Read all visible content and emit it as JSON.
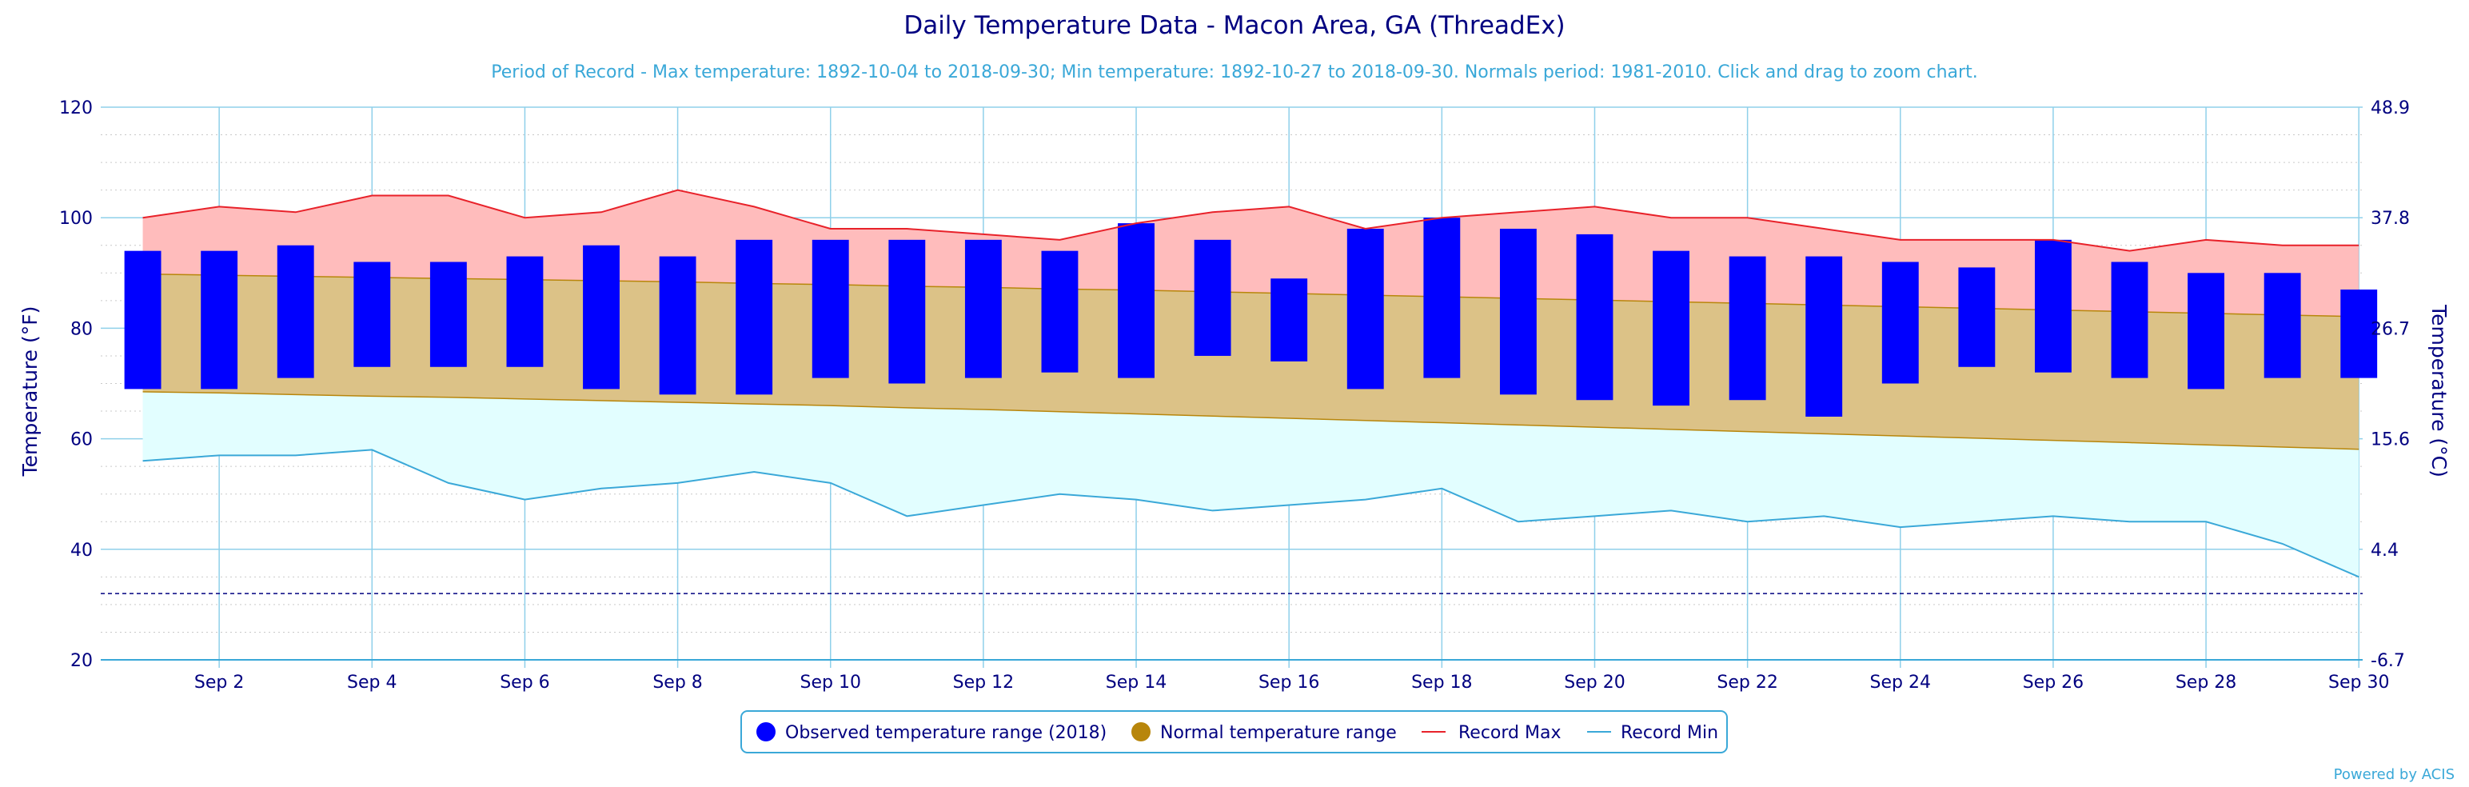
{
  "chart_data": {
    "type": "bar",
    "title": "Daily Temperature Data - Macon Area, GA (ThreadEx)",
    "subtitle": "Period of Record - Max temperature: 1892-10-04 to 2018-09-30; Min temperature: 1892-10-27 to 2018-09-30. Normals period: 1981-2010. Click and drag to zoom chart.",
    "ylabel_left": "Temperature (°F)",
    "ylabel_right": "Temperature (°C)",
    "ylim": [
      20,
      120
    ],
    "y_ticks_left": [
      "20",
      "40",
      "60",
      "80",
      "100",
      "120"
    ],
    "y_ticks_right": [
      "-6.7",
      "4.4",
      "15.6",
      "26.7",
      "37.8",
      "48.9"
    ],
    "x_tick_labels": [
      "Sep 2",
      "Sep 4",
      "Sep 6",
      "Sep 8",
      "Sep 10",
      "Sep 12",
      "Sep 14",
      "Sep 16",
      "Sep 18",
      "Sep 20",
      "Sep 22",
      "Sep 24",
      "Sep 26",
      "Sep 28",
      "Sep 30"
    ],
    "x_tick_days": [
      2,
      4,
      6,
      8,
      10,
      12,
      14,
      16,
      18,
      20,
      22,
      24,
      26,
      28,
      30
    ],
    "days": [
      1,
      2,
      3,
      4,
      5,
      6,
      7,
      8,
      9,
      10,
      11,
      12,
      13,
      14,
      15,
      16,
      17,
      18,
      19,
      20,
      21,
      22,
      23,
      24,
      25,
      26,
      27,
      28,
      29,
      30
    ],
    "freeze_line": 32,
    "series": [
      {
        "name": "Observed temperature range (2018)",
        "color": "#0000ff",
        "high": [
          94,
          94,
          95,
          92,
          92,
          93,
          95,
          93,
          96,
          96,
          96,
          96,
          94,
          99,
          96,
          89,
          98,
          100,
          98,
          97,
          94,
          93,
          93,
          92,
          91,
          96,
          92,
          90,
          90,
          87
        ],
        "low": [
          69,
          69,
          71,
          73,
          73,
          73,
          69,
          68,
          68,
          71,
          70,
          71,
          72,
          71,
          75,
          74,
          69,
          71,
          68,
          67,
          66,
          67,
          64,
          70,
          73,
          72,
          71,
          69,
          71,
          71
        ]
      },
      {
        "name": "Normal temperature range",
        "color": "#b8860b",
        "high": [
          89.8,
          89.6,
          89.4,
          89.2,
          89.0,
          88.8,
          88.6,
          88.4,
          88.1,
          87.9,
          87.6,
          87.4,
          87.1,
          86.9,
          86.6,
          86.3,
          86.0,
          85.7,
          85.4,
          85.1,
          84.8,
          84.5,
          84.2,
          83.9,
          83.6,
          83.3,
          83.0,
          82.7,
          82.4,
          82.1
        ],
        "low": [
          68.5,
          68.3,
          68.0,
          67.7,
          67.5,
          67.2,
          66.9,
          66.6,
          66.3,
          66.0,
          65.6,
          65.3,
          64.9,
          64.5,
          64.1,
          63.7,
          63.3,
          62.9,
          62.5,
          62.1,
          61.7,
          61.3,
          60.9,
          60.5,
          60.1,
          59.7,
          59.3,
          58.9,
          58.5,
          58.1
        ]
      },
      {
        "name": "Record Max",
        "color": "#e8222a",
        "values": [
          100,
          102,
          101,
          104,
          104,
          100,
          101,
          105,
          102,
          98,
          98,
          97,
          96,
          99,
          101,
          102,
          98,
          100,
          101,
          102,
          100,
          100,
          98,
          96,
          96,
          96,
          94,
          96,
          95,
          95
        ]
      },
      {
        "name": "Record Min",
        "color": "#3aa8d8",
        "values": [
          56,
          57,
          57,
          58,
          52,
          49,
          51,
          52,
          54,
          52,
          46,
          48,
          50,
          49,
          47,
          48,
          49,
          51,
          45,
          46,
          47,
          45,
          46,
          44,
          45,
          46,
          45,
          45,
          41,
          35
        ]
      }
    ],
    "legend_position": "bottom-center",
    "grid": true,
    "credit": "Powered by ACIS"
  }
}
